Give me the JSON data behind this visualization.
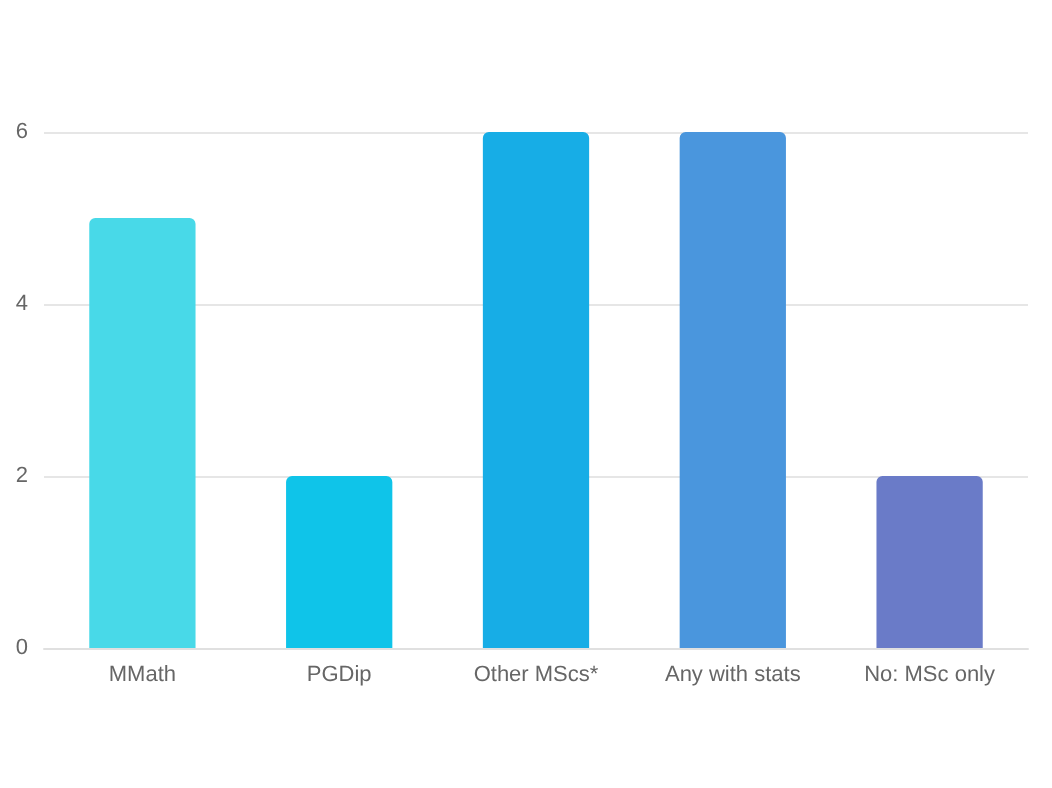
{
  "chart_data": {
    "type": "bar",
    "categories": [
      "MMath",
      "PGDip",
      "Other MScs*",
      "Any with stats",
      "No: MSc only"
    ],
    "values": [
      5,
      2,
      6,
      6,
      2
    ],
    "colors": [
      "#48d9e8",
      "#0fc4e9",
      "#17ade6",
      "#4a96dd",
      "#6a7bc8"
    ],
    "ylim": [
      0,
      6
    ],
    "yticks": [
      0,
      2,
      4,
      6
    ],
    "grid": "y"
  }
}
